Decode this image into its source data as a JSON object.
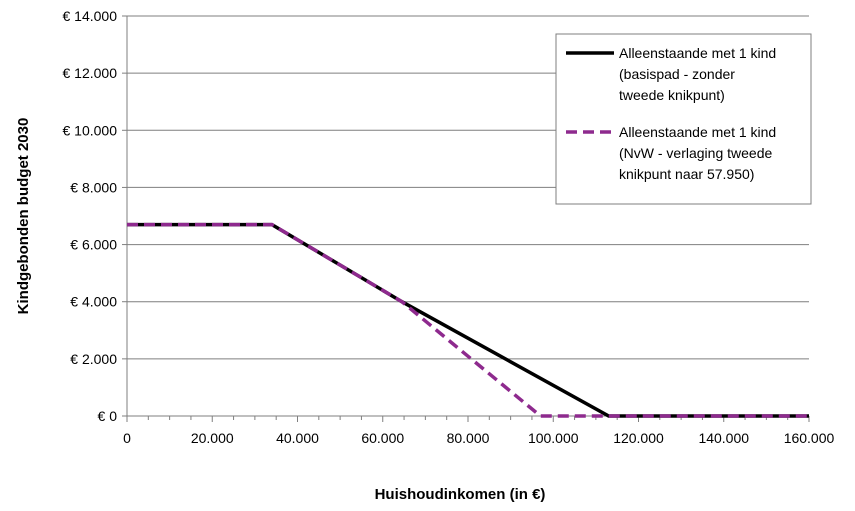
{
  "chart_data": {
    "type": "line",
    "xlabel": "Huishoudinkomen (in €)",
    "ylabel": "Kindgebonden budget 2030",
    "xlim": [
      0,
      160000
    ],
    "ylim": [
      0,
      14000
    ],
    "x_ticks": [
      0,
      20000,
      40000,
      60000,
      80000,
      100000,
      120000,
      140000,
      160000
    ],
    "x_tick_labels": [
      "0",
      "20.000",
      "40.000",
      "60.000",
      "80.000",
      "100.000",
      "120.000",
      "140.000",
      "160.000"
    ],
    "y_ticks": [
      0,
      2000,
      4000,
      6000,
      8000,
      10000,
      12000,
      14000
    ],
    "y_tick_labels": [
      "€ 0",
      "€ 2.000",
      "€ 4.000",
      "€ 6.000",
      "€ 8.000",
      "€ 10.000",
      "€ 12.000",
      "€ 14.000"
    ],
    "grid": "horizontal",
    "legend_position": "top-right",
    "series": [
      {
        "name_lines": [
          "Alleenstaande met 1 kind",
          "(basispad - zonder",
          "tweede knikpunt)"
        ],
        "color": "#000000",
        "style": "solid",
        "x": [
          0,
          34000,
          64500,
          113000,
          160000
        ],
        "y": [
          6700,
          6700,
          4000,
          0,
          0
        ]
      },
      {
        "name_lines": [
          "Alleenstaande met 1 kind",
          "(NvW - verlaging tweede",
          "knikpunt naar 57.950)"
        ],
        "color": "#8e2a8e",
        "style": "dashed",
        "x": [
          0,
          34000,
          64500,
          97000,
          160000
        ],
        "y": [
          6700,
          6700,
          4000,
          0,
          0
        ]
      }
    ]
  }
}
